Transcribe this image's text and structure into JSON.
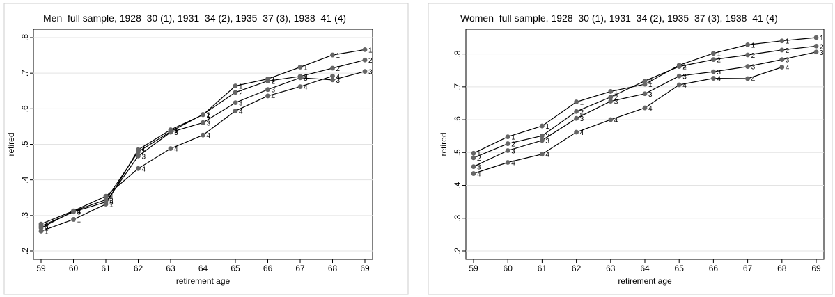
{
  "chart_data": [
    {
      "type": "line",
      "title": "Men–full sample, 1928–30 (1), 1931–34 (2), 1935–37 (3), 1938–41 (4)",
      "xlabel": "retirement age",
      "ylabel": "retired",
      "x": [
        59,
        60,
        61,
        62,
        63,
        64,
        65,
        66,
        67,
        68,
        69
      ],
      "xticks": [
        "59",
        "60",
        "61",
        "62",
        "63",
        "64",
        "65",
        "66",
        "67",
        "68",
        "69"
      ],
      "ylim": [
        0.2,
        0.8
      ],
      "yticks": [
        0.2,
        0.3,
        0.4,
        0.5,
        0.6,
        0.7,
        0.8
      ],
      "ytick_labels": [
        ".2",
        ".3",
        ".4",
        ".5",
        ".6",
        ".7",
        ".8"
      ],
      "grid": true,
      "marker_color": "#666666",
      "line_color": "#000000",
      "series": [
        {
          "label": "1",
          "values": [
            0.256,
            0.289,
            0.332,
            0.485,
            0.541,
            0.583,
            0.664,
            0.684,
            0.717,
            0.751,
            0.766
          ]
        },
        {
          "label": "2",
          "values": [
            0.265,
            0.312,
            0.344,
            0.479,
            0.536,
            0.584,
            0.646,
            0.678,
            0.691,
            0.714,
            0.737
          ]
        },
        {
          "label": "3",
          "values": [
            0.27,
            0.31,
            0.338,
            0.467,
            0.534,
            0.561,
            0.617,
            0.654,
            0.687,
            0.681,
            0.705
          ]
        },
        {
          "label": "4",
          "values": [
            0.276,
            0.313,
            0.354,
            0.432,
            0.488,
            0.526,
            0.594,
            0.636,
            0.662,
            0.692,
            null
          ]
        }
      ]
    },
    {
      "type": "line",
      "title": "Women–full sample, 1928–30 (1), 1931–34 (2), 1935–37 (3), 1938–41 (4)",
      "xlabel": "retirement age",
      "ylabel": "retired",
      "x": [
        59,
        60,
        61,
        62,
        63,
        64,
        65,
        66,
        67,
        68,
        69
      ],
      "xticks": [
        "59",
        "60",
        "61",
        "62",
        "63",
        "64",
        "65",
        "66",
        "67",
        "68",
        "69"
      ],
      "ylim": [
        0.2,
        0.85
      ],
      "yticks": [
        0.2,
        0.3,
        0.4,
        0.5,
        0.6,
        0.7,
        0.8
      ],
      "ytick_labels": [
        ".2",
        ".3",
        ".4",
        ".5",
        ".6",
        ".7",
        ".8"
      ],
      "grid": true,
      "marker_color": "#666666",
      "line_color": "#000000",
      "series": [
        {
          "label": "1",
          "values": [
            0.498,
            0.548,
            0.581,
            0.654,
            0.686,
            0.708,
            0.766,
            0.802,
            0.828,
            0.84,
            0.85
          ]
        },
        {
          "label": "2",
          "values": [
            0.484,
            0.527,
            0.551,
            0.625,
            0.669,
            0.718,
            0.762,
            0.783,
            0.797,
            0.812,
            0.824
          ]
        },
        {
          "label": "3",
          "values": [
            0.457,
            0.506,
            0.537,
            0.604,
            0.656,
            0.679,
            0.733,
            0.746,
            0.762,
            0.783,
            0.806
          ]
        },
        {
          "label": "4",
          "values": [
            0.436,
            0.47,
            0.495,
            0.562,
            0.6,
            0.636,
            0.706,
            0.726,
            0.725,
            0.76,
            null
          ]
        }
      ]
    }
  ]
}
